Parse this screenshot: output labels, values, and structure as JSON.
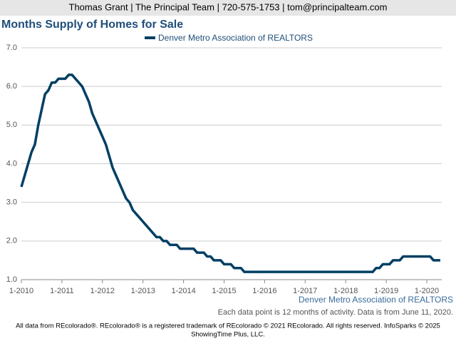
{
  "header": "Thomas Grant | The Principal Team | 720-575-1753 | tom@principalteam.com",
  "chart_data": {
    "type": "line",
    "title": "Months Supply of Homes for Sale",
    "source": "Denver Metro Association of REALTORS",
    "note": "Each data point is 12 months of activity. Data is from June 11, 2020.",
    "categories": [
      "1-2010",
      null,
      null,
      null,
      null,
      null,
      null,
      null,
      null,
      null,
      null,
      null,
      "1-2011",
      null,
      null,
      null,
      null,
      null,
      null,
      null,
      null,
      null,
      null,
      null,
      "1-2012",
      null,
      null,
      null,
      null,
      null,
      null,
      null,
      null,
      null,
      null,
      null,
      "1-2013",
      null,
      null,
      null,
      null,
      null,
      null,
      null,
      null,
      null,
      null,
      null,
      "1-2014",
      null,
      null,
      null,
      null,
      null,
      null,
      null,
      null,
      null,
      null,
      null,
      "1-2015",
      null,
      null,
      null,
      null,
      null,
      null,
      null,
      null,
      null,
      null,
      null,
      "1-2016",
      null,
      null,
      null,
      null,
      null,
      null,
      null,
      null,
      null,
      null,
      null,
      "1-2017",
      null,
      null,
      null,
      null,
      null,
      null,
      null,
      null,
      null,
      null,
      null,
      "1-2018",
      null,
      null,
      null,
      null,
      null,
      null,
      null,
      null,
      null,
      null,
      null,
      "1-2019",
      null,
      null,
      null,
      null,
      null,
      null,
      null,
      null,
      null,
      null,
      null,
      "1-2020",
      null,
      null,
      null,
      null
    ],
    "series": [
      {
        "name": "Denver Metro Association of REALTORS",
        "color": "#003f63",
        "values": [
          3.4,
          3.7,
          4.0,
          4.3,
          4.5,
          5.0,
          5.4,
          5.8,
          5.9,
          6.1,
          6.1,
          6.2,
          6.2,
          6.2,
          6.3,
          6.3,
          6.2,
          6.1,
          6.0,
          5.8,
          5.6,
          5.3,
          5.1,
          4.9,
          4.7,
          4.5,
          4.2,
          3.9,
          3.7,
          3.5,
          3.3,
          3.1,
          3.0,
          2.8,
          2.7,
          2.6,
          2.5,
          2.4,
          2.3,
          2.2,
          2.1,
          2.1,
          2.0,
          2.0,
          1.9,
          1.9,
          1.9,
          1.8,
          1.8,
          1.8,
          1.8,
          1.8,
          1.7,
          1.7,
          1.7,
          1.6,
          1.6,
          1.5,
          1.5,
          1.5,
          1.4,
          1.4,
          1.4,
          1.3,
          1.3,
          1.3,
          1.2,
          1.2,
          1.2,
          1.2,
          1.2,
          1.2,
          1.2,
          1.2,
          1.2,
          1.2,
          1.2,
          1.2,
          1.2,
          1.2,
          1.2,
          1.2,
          1.2,
          1.2,
          1.2,
          1.2,
          1.2,
          1.2,
          1.2,
          1.2,
          1.2,
          1.2,
          1.2,
          1.2,
          1.2,
          1.2,
          1.2,
          1.2,
          1.2,
          1.2,
          1.2,
          1.2,
          1.2,
          1.2,
          1.2,
          1.3,
          1.3,
          1.4,
          1.4,
          1.4,
          1.5,
          1.5,
          1.5,
          1.6,
          1.6,
          1.6,
          1.6,
          1.6,
          1.6,
          1.6,
          1.6,
          1.6,
          1.5,
          1.5,
          1.5
        ]
      }
    ],
    "ylim": [
      1,
      7
    ],
    "yticks": [
      {
        "value": 1,
        "label": "1.0"
      },
      {
        "value": 2,
        "label": "2.0"
      },
      {
        "value": 3,
        "label": "3.0"
      },
      {
        "value": 4,
        "label": "4.0"
      },
      {
        "value": 5,
        "label": "5.0"
      },
      {
        "value": 6,
        "label": "6.0"
      },
      {
        "value": 7,
        "label": "7.0"
      }
    ],
    "grid": true
  },
  "footer": [
    "All data from REcolorado®. REcolorado® is a registered trademark of REcolorado © 2021 REcolorado. All rights reserved. InfoSparks © 2025",
    "ShowingTime Plus, LLC."
  ]
}
